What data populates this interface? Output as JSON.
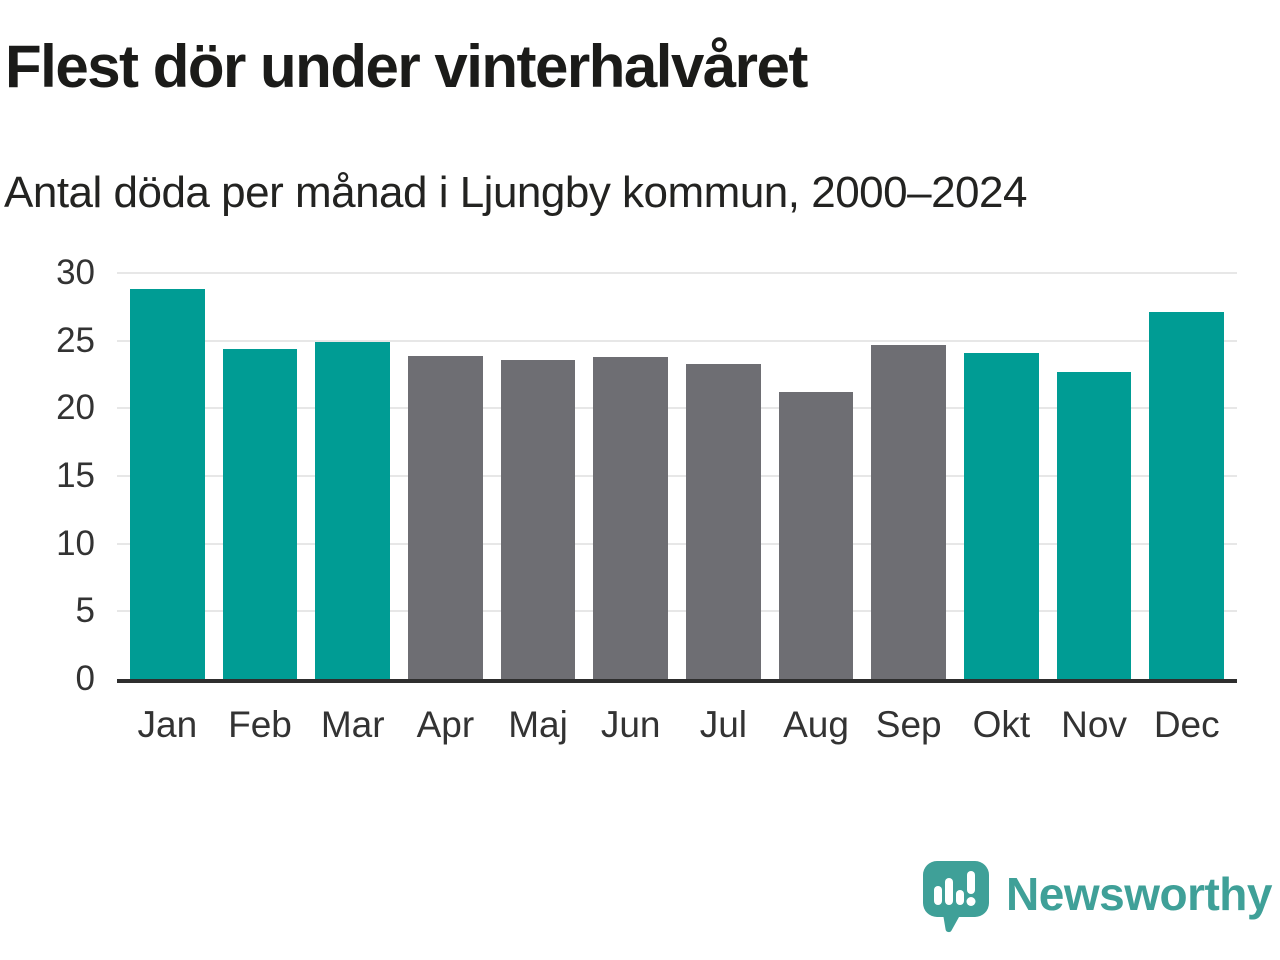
{
  "header": {
    "title": "Flest dör under vinterhalvåret",
    "subtitle": "Antal döda per månad i Ljungby kommun, 2000–2024"
  },
  "chart_data": {
    "type": "bar",
    "categories": [
      "Jan",
      "Feb",
      "Mar",
      "Apr",
      "Maj",
      "Jun",
      "Jul",
      "Aug",
      "Sep",
      "Okt",
      "Nov",
      "Dec"
    ],
    "values": [
      28.8,
      24.4,
      24.9,
      23.9,
      23.6,
      23.8,
      23.3,
      21.2,
      24.7,
      24.1,
      22.7,
      27.1
    ],
    "bar_colors": [
      "#009c94",
      "#009c94",
      "#009c94",
      "#6e6e73",
      "#6e6e73",
      "#6e6e73",
      "#6e6e73",
      "#6e6e73",
      "#6e6e73",
      "#009c94",
      "#009c94",
      "#009c94"
    ],
    "title": "Flest dör under vinterhalvåret",
    "subtitle": "Antal döda per månad i Ljungby kommun, 2000–2024",
    "xlabel": "",
    "ylabel": "",
    "ylim": [
      0,
      30
    ],
    "yticks": [
      0,
      5,
      10,
      15,
      20,
      25,
      30
    ],
    "grid": true,
    "legend": false
  },
  "colors": {
    "teal": "#009c94",
    "gray": "#6e6e73",
    "axis_line": "#2e2e2e",
    "gridline": "#e7e7e7",
    "tick_text": "#333333",
    "title_text": "#1b1b19",
    "logo_teal": "#3fa098",
    "background": "#ffffff"
  },
  "footer": {
    "brand": "Newsworthy"
  }
}
